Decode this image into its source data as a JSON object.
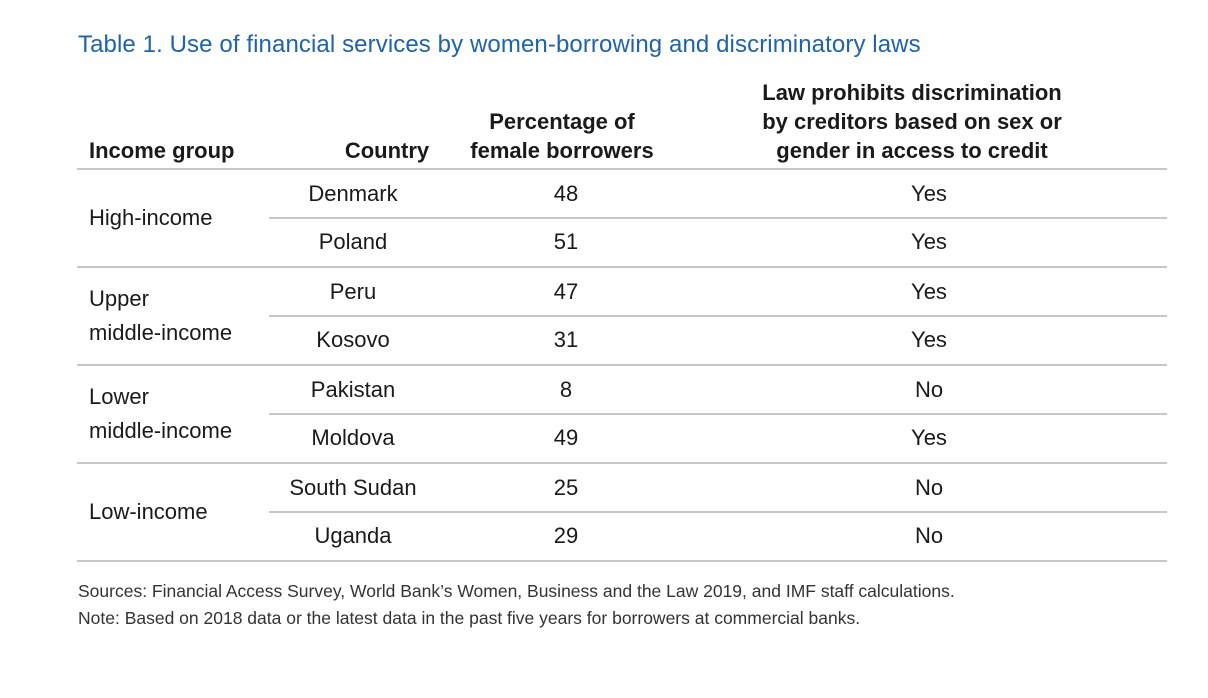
{
  "title": "Table 1. Use of financial services by women-borrowing and discriminatory laws",
  "headers": {
    "income_group": "Income group",
    "country": "Country",
    "percentage": "Percentage of\nfemale borrowers",
    "law": "Law prohibits discrimination\nby creditors based on sex or\ngender in access to credit"
  },
  "groups": [
    {
      "label": "High-income",
      "rows": [
        {
          "country": "Denmark",
          "percentage": "48",
          "law": "Yes"
        },
        {
          "country": "Poland",
          "percentage": "51",
          "law": "Yes"
        }
      ]
    },
    {
      "label": "Upper\nmiddle-income",
      "rows": [
        {
          "country": "Peru",
          "percentage": "47",
          "law": "Yes"
        },
        {
          "country": "Kosovo",
          "percentage": "31",
          "law": "Yes"
        }
      ]
    },
    {
      "label": "Lower\nmiddle-income",
      "rows": [
        {
          "country": "Pakistan",
          "percentage": "8",
          "law": "No"
        },
        {
          "country": "Moldova",
          "percentage": "49",
          "law": "Yes"
        }
      ]
    },
    {
      "label": "Low-income",
      "rows": [
        {
          "country": "South Sudan",
          "percentage": "25",
          "law": "No"
        },
        {
          "country": "Uganda",
          "percentage": "29",
          "law": "No"
        }
      ]
    }
  ],
  "notes": {
    "sources": "Sources: Financial Access Survey, World Bank’s Women, Business and the Law 2019, and IMF staff calculations.",
    "note": "Note: Based on 2018 data or the latest data in the past five years for borrowers at commercial banks."
  }
}
